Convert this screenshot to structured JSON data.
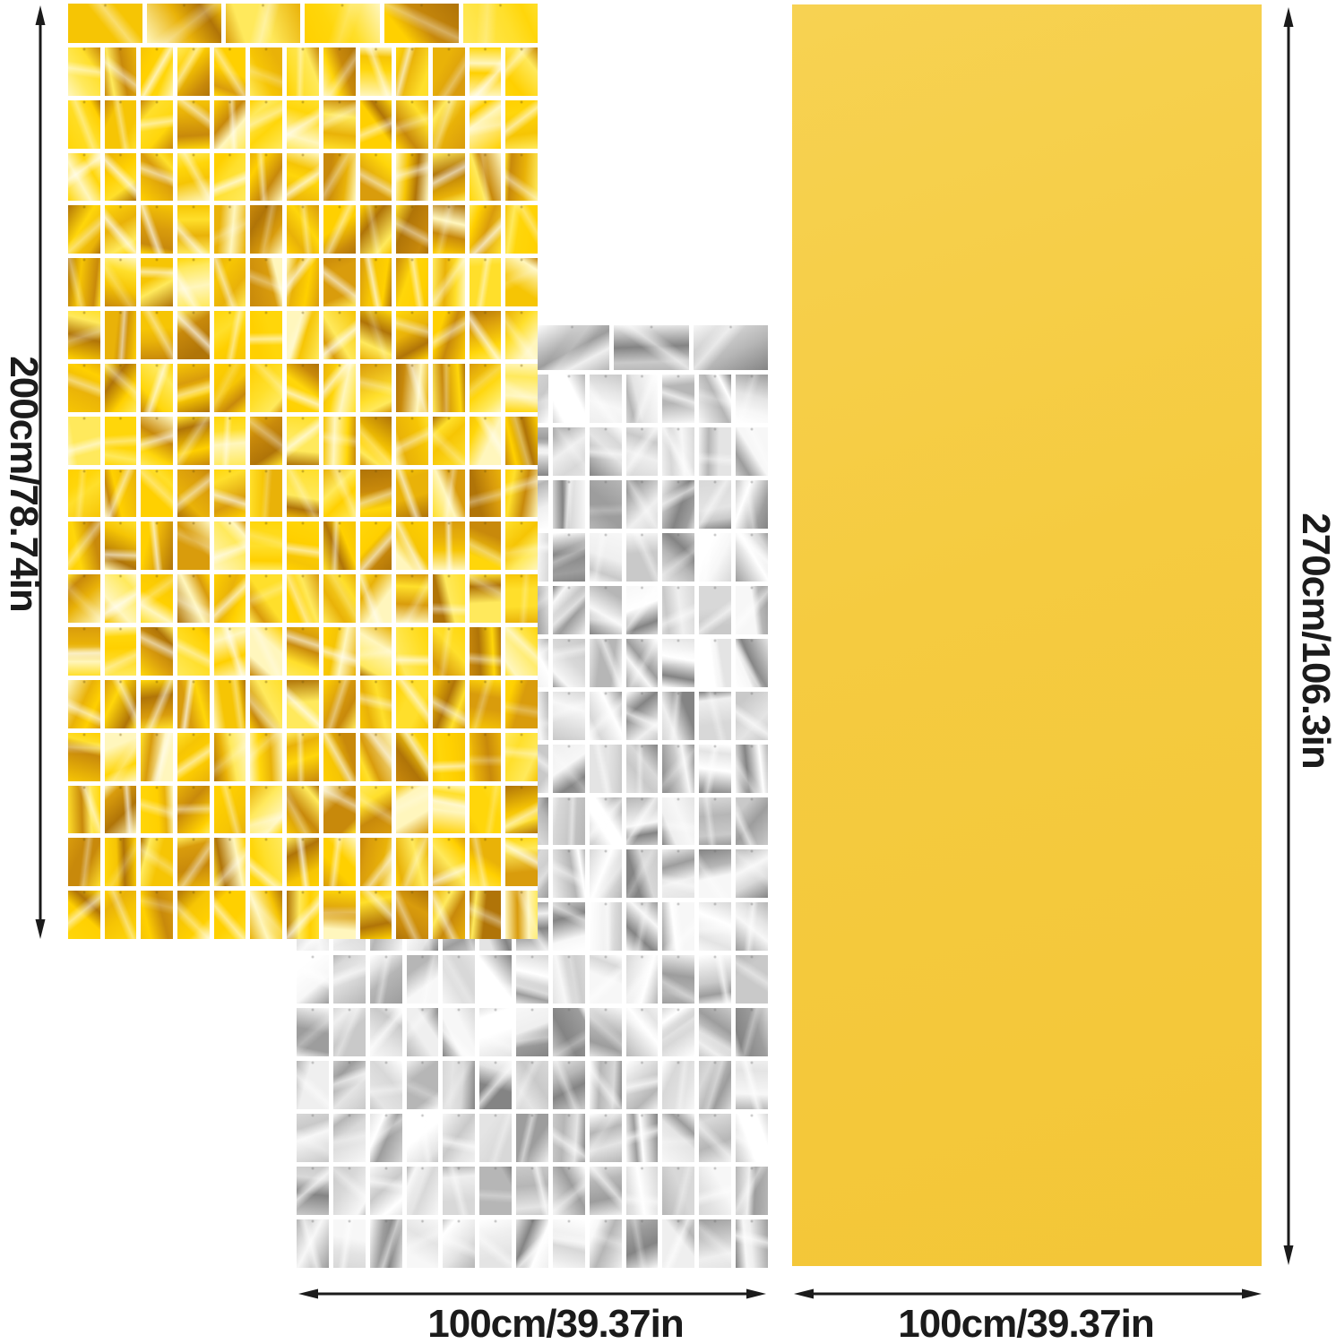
{
  "diagram": {
    "gold_curtain": {
      "height_label": "200cm/78.74in",
      "columns": 13,
      "rows": 17,
      "band_cells": 6,
      "palette": [
        "#fff6bd",
        "#ffe95c",
        "#ffdf2b",
        "#ffd60a",
        "#ffd000",
        "#f6c504",
        "#e9b208",
        "#d99c0c",
        "#c8890b",
        "#b07408"
      ],
      "joint_dot_color": "rgba(115,85,10,0.55)"
    },
    "silver_curtain": {
      "width_label": "100cm/39.37in",
      "columns": 13,
      "rows": 17,
      "band_cells": 6,
      "palette": [
        "#ffffff",
        "#f7f7f7",
        "#efefef",
        "#e4e4e4",
        "#d8d8d8",
        "#c9c9c9",
        "#b6b6b6",
        "#9d9d9d",
        "#848484"
      ],
      "joint_dot_color": "rgba(110,110,110,0.55)"
    },
    "gold_backdrop": {
      "height_label": "270cm/106.3in",
      "width_label": "100cm/39.37in",
      "color_top": "#f7d252",
      "color_mid": "#f5cb40",
      "color_bottom": "#f3c637"
    },
    "annotation": {
      "text_color": "#1b1b1b",
      "arrow_color": "#1b1b1b",
      "background": "#ffffff"
    }
  }
}
